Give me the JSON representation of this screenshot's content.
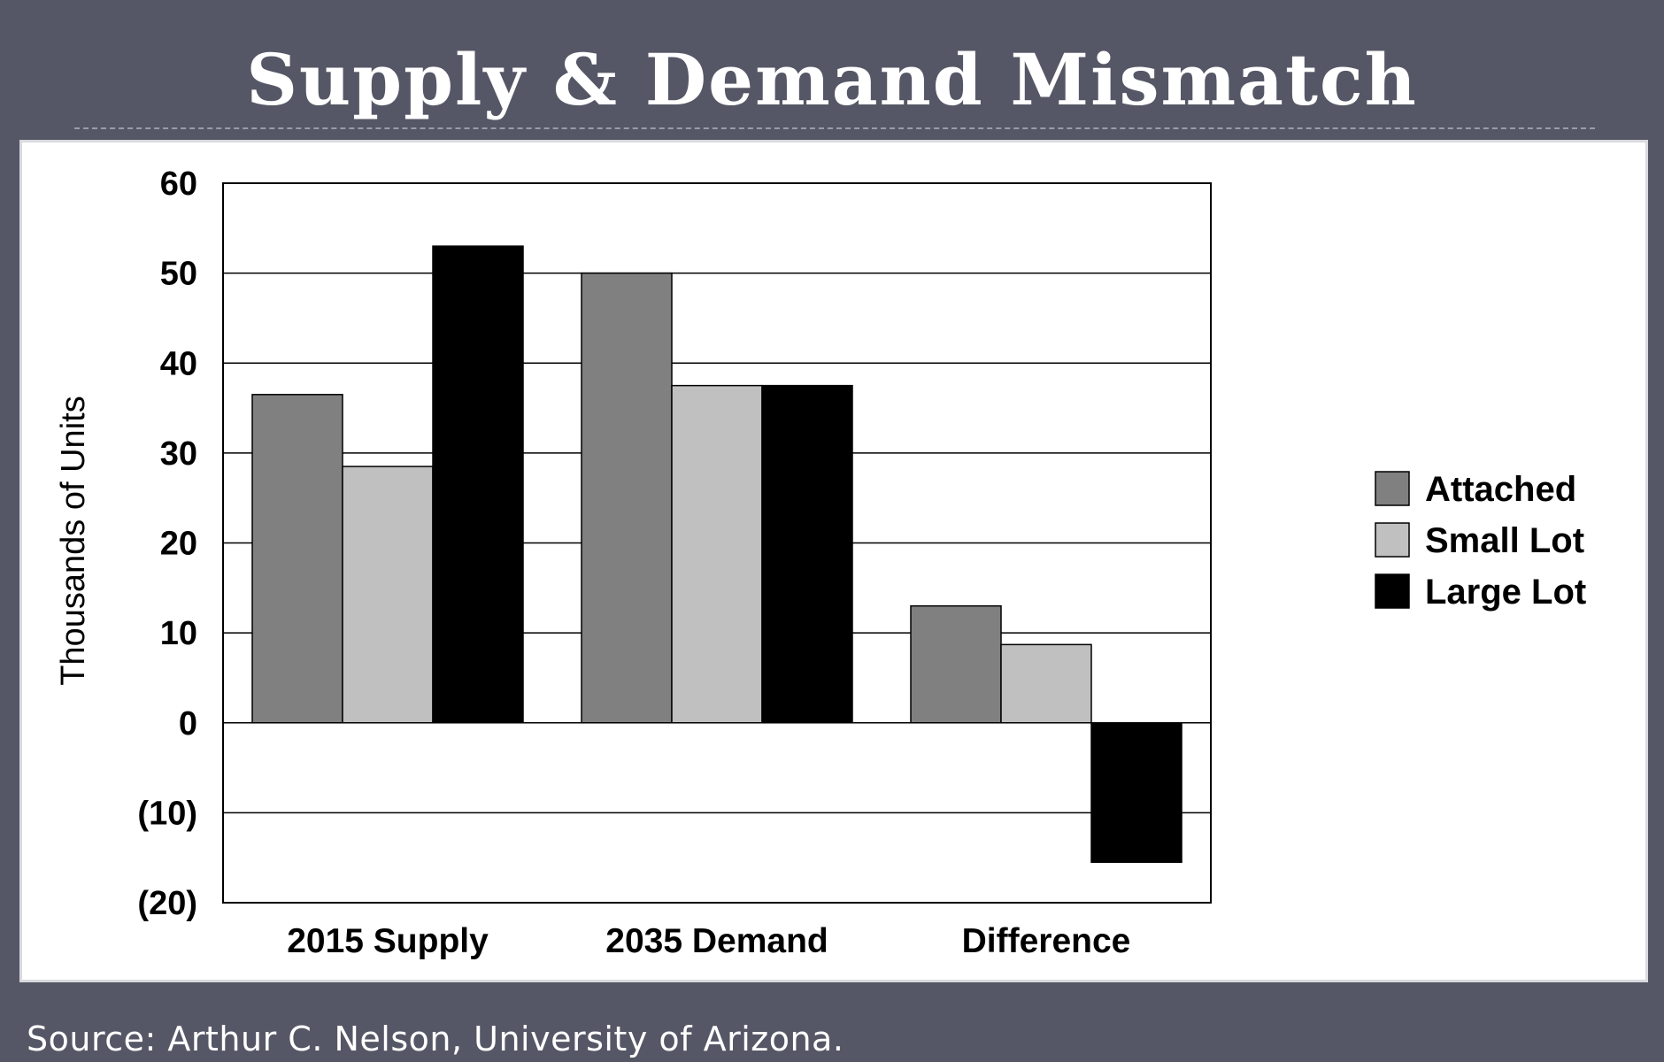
{
  "slide": {
    "title": "Supply & Demand Mismatch",
    "source": "Source: Arthur C. Nelson, University of Arizona."
  },
  "chart_data": {
    "type": "bar",
    "categories": [
      "2015 Supply",
      "2035 Demand",
      "Difference"
    ],
    "series": [
      {
        "name": "Attached",
        "values": [
          36.5,
          50,
          13
        ],
        "color": "#808080"
      },
      {
        "name": "Small Lot",
        "values": [
          28.5,
          37.5,
          8.7
        ],
        "color": "#c0c0c0"
      },
      {
        "name": "Large Lot",
        "values": [
          53,
          37.5,
          -15.5
        ],
        "color": "#000000"
      }
    ],
    "title": "",
    "xlabel": "",
    "ylabel": "Thousands of Units",
    "ylim": [
      -20,
      60
    ],
    "yticks": [
      60,
      50,
      40,
      30,
      20,
      10,
      0,
      -10,
      -20
    ],
    "ytick_labels": [
      "60",
      "50",
      "40",
      "30",
      "20",
      "10",
      "0",
      "(10)",
      "(20)"
    ],
    "grid": true,
    "legend": "right"
  }
}
